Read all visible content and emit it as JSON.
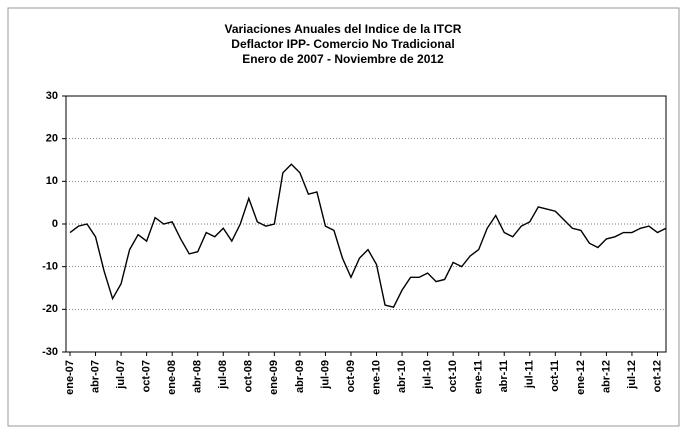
{
  "chart_data": {
    "type": "line",
    "title": [
      "Variaciones Anuales del Indice de la ITCR",
      "Deflactor IPP- Comercio No Tradicional",
      "Enero de 2007 - Noviembre  de 2012"
    ],
    "categories": [
      "ene-07",
      null,
      null,
      "abr-07",
      null,
      null,
      "jul-07",
      null,
      null,
      "oct-07",
      null,
      null,
      "ene-08",
      null,
      null,
      "abr-08",
      null,
      null,
      "jul-08",
      null,
      null,
      "oct-08",
      null,
      null,
      "ene-09",
      null,
      null,
      "abr-09",
      null,
      null,
      "jul-09",
      null,
      null,
      "oct-09",
      null,
      null,
      "ene-10",
      null,
      null,
      "abr-10",
      null,
      null,
      "jul-10",
      null,
      null,
      "oct-10",
      null,
      null,
      "ene-11",
      null,
      null,
      "abr-11",
      null,
      null,
      "jul-11",
      null,
      null,
      "oct-11",
      null,
      null,
      "ene-12",
      null,
      null,
      "abr-12",
      null,
      null,
      "jul-12",
      null,
      null,
      "oct-12",
      null
    ],
    "values": [
      -2,
      -0.5,
      0,
      -3,
      -11,
      -17.5,
      -14,
      -6,
      -2.5,
      -4,
      1.5,
      0,
      0.5,
      -3.5,
      -7,
      -6.5,
      -2,
      -3,
      -1,
      -4,
      0,
      6,
      0.5,
      -0.5,
      0,
      12,
      14,
      12,
      7,
      7.5,
      -0.5,
      -1.5,
      -8,
      -12.5,
      -8,
      -6,
      -9.5,
      -19,
      -19.5,
      -15.5,
      -12.5,
      -12.5,
      -11.5,
      -13.5,
      -13,
      -9,
      -10,
      -7.5,
      -6,
      -1,
      2,
      -2,
      -3,
      -0.5,
      0.5,
      4,
      3.5,
      3,
      1,
      -1,
      -1.5,
      -4.5,
      -5.5,
      -3.5,
      -3,
      -2,
      -2,
      -1,
      -0.5,
      -2,
      -1
    ],
    "color": "#000000",
    "ylim": [
      -30,
      30
    ],
    "yticks": [
      -30,
      -20,
      -10,
      0,
      10,
      20,
      30
    ],
    "grid": true
  }
}
